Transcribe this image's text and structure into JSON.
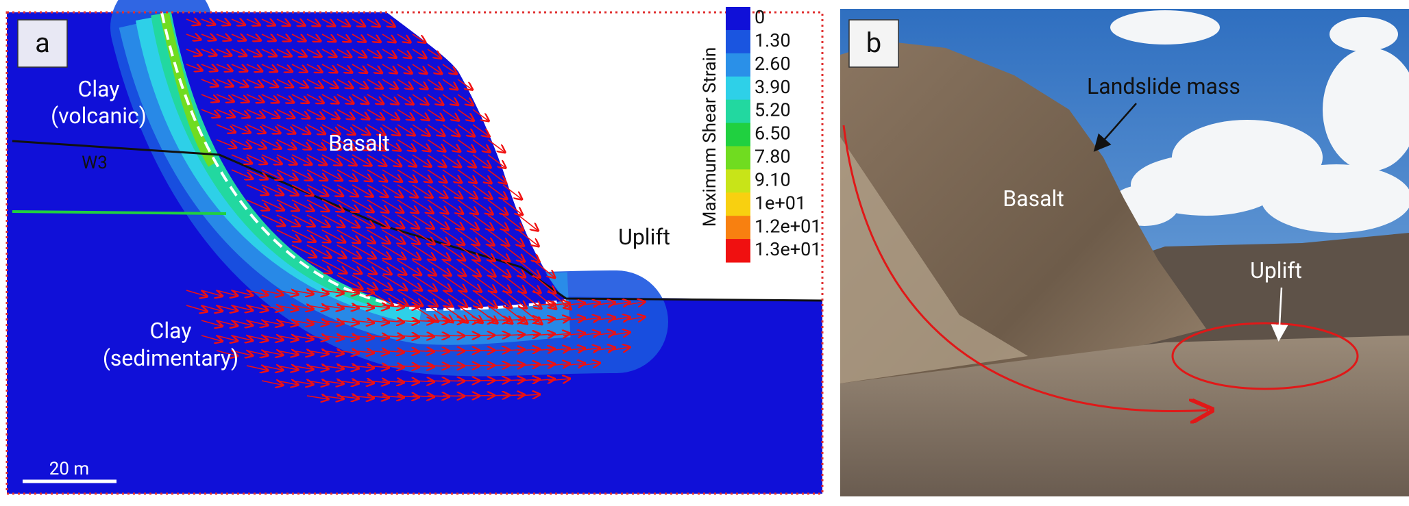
{
  "panel_a": {
    "label": "a",
    "regions": {
      "clay_volcanic": [
        "Clay",
        "(volcanic)"
      ],
      "basalt": "Basalt",
      "w3": "W3",
      "uplift": "Uplift",
      "clay_sedimentary": [
        "Clay",
        "(sedimentary)"
      ]
    },
    "scale_bar": "20 m",
    "colorbar": {
      "title": "Maximum Shear Strain",
      "levels": [
        {
          "label": "0",
          "color": "#1010d8"
        },
        {
          "label": "1.30",
          "color": "#1a55e0"
        },
        {
          "label": "2.60",
          "color": "#2a90e8"
        },
        {
          "label": "3.90",
          "color": "#2ed0e8"
        },
        {
          "label": "5.20",
          "color": "#22d8a0"
        },
        {
          "label": "6.50",
          "color": "#20d040"
        },
        {
          "label": "7.80",
          "color": "#70dc20"
        },
        {
          "label": "9.10",
          "color": "#c8e418"
        },
        {
          "label": "1e+01",
          "color": "#f8d010"
        },
        {
          "label": "1.2e+01",
          "color": "#f88010"
        },
        {
          "label": "1.3e+01",
          "color": "#f01010"
        }
      ]
    }
  },
  "panel_b": {
    "label": "b",
    "annotations": {
      "landslide_mass": "Landslide mass",
      "basalt": "Basalt",
      "uplift": "Uplift"
    }
  }
}
